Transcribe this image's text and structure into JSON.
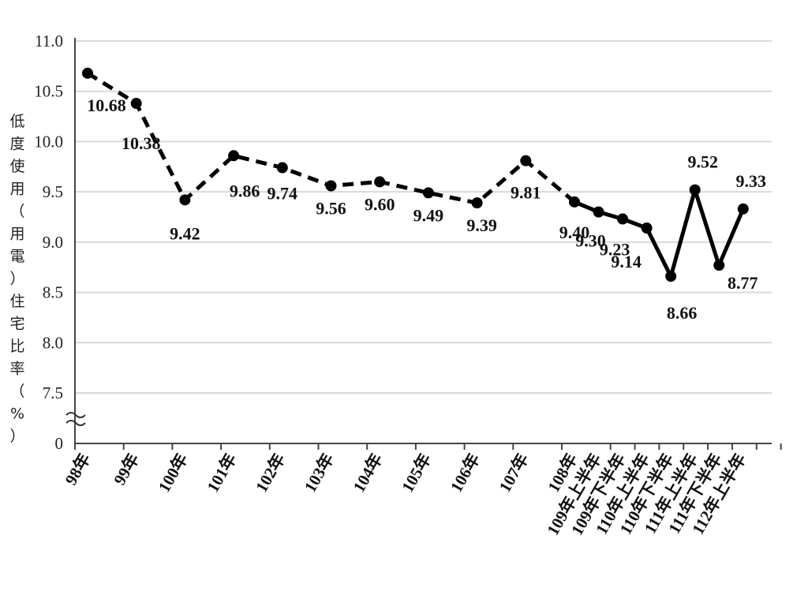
{
  "chart_data": {
    "type": "line",
    "ylabel_chars": [
      "低",
      "度",
      "使",
      "用",
      "（",
      "用",
      "電",
      "）",
      "住",
      "宅",
      "比",
      "率",
      "（",
      "%",
      "）"
    ],
    "y_ticks": [
      "11.0",
      "10.5",
      "10.0",
      "9.5",
      "9.0",
      "8.5",
      "8.0",
      "7.5",
      "0"
    ],
    "y_tick_values": [
      11.0,
      10.5,
      10.0,
      9.5,
      9.0,
      8.5,
      8.0,
      7.5,
      0
    ],
    "ylim": [
      7.5,
      11.0
    ],
    "axis_break": true,
    "grid": true,
    "categories": [
      "98年",
      "99年",
      "100年",
      "101年",
      "102年",
      "103年",
      "104年",
      "105年",
      "106年",
      "107年",
      "108年",
      "109年上半年",
      "109年下半年",
      "110年上半年",
      "110年下半年",
      "111年上半年",
      "111年下半年",
      "112年上半年"
    ],
    "values": [
      10.68,
      10.38,
      9.42,
      9.86,
      9.74,
      9.56,
      9.6,
      9.49,
      9.39,
      9.81,
      9.4,
      9.3,
      9.23,
      9.14,
      8.66,
      9.52,
      8.77,
      9.33
    ],
    "value_labels": [
      "10.68",
      "10.38",
      "9.42",
      "9.86",
      "9.74",
      "9.56",
      "9.60",
      "9.49",
      "9.39",
      "9.81",
      "9.40",
      "9.30",
      "9.23",
      "9.14",
      "8.66",
      "9.52",
      "8.77",
      "9.33"
    ],
    "series_styles": [
      {
        "style": "dashed",
        "from_index": 0,
        "to_index": 10
      },
      {
        "style": "solid",
        "from_index": 10,
        "to_index": 17
      }
    ],
    "colors": {
      "line": "#000000",
      "grid": "#d9d9d9",
      "axis": "#444444"
    }
  }
}
